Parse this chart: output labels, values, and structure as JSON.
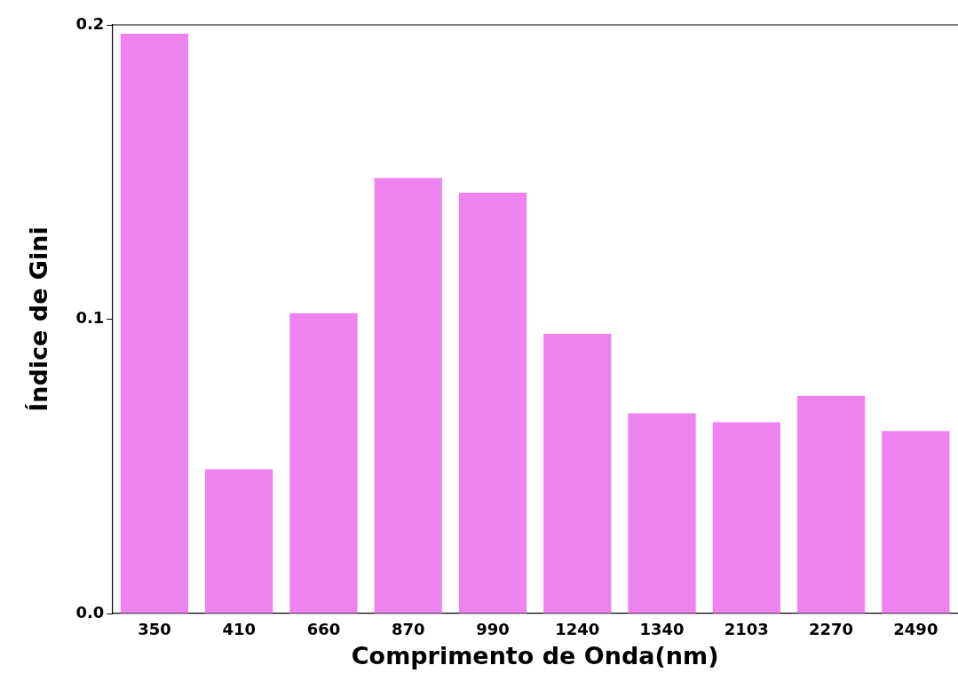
{
  "chart_data": {
    "type": "bar",
    "xlabel": "Comprimento de Onda(nm)",
    "ylabel": "Índice de Gini",
    "categories": [
      "350",
      "410",
      "660",
      "870",
      "990",
      "1240",
      "1340",
      "2103",
      "2270",
      "2490"
    ],
    "values": [
      0.197,
      0.049,
      0.102,
      0.148,
      0.143,
      0.095,
      0.068,
      0.065,
      0.074,
      0.062
    ],
    "color": "#ee82ee",
    "ylim": [
      0,
      0.2
    ],
    "yticks": [
      {
        "value": 0,
        "label": "0.0"
      },
      {
        "value": 0.1,
        "label": "0.1"
      },
      {
        "value": 0.2,
        "label": "0.2"
      }
    ],
    "grid": false,
    "legend": false
  }
}
